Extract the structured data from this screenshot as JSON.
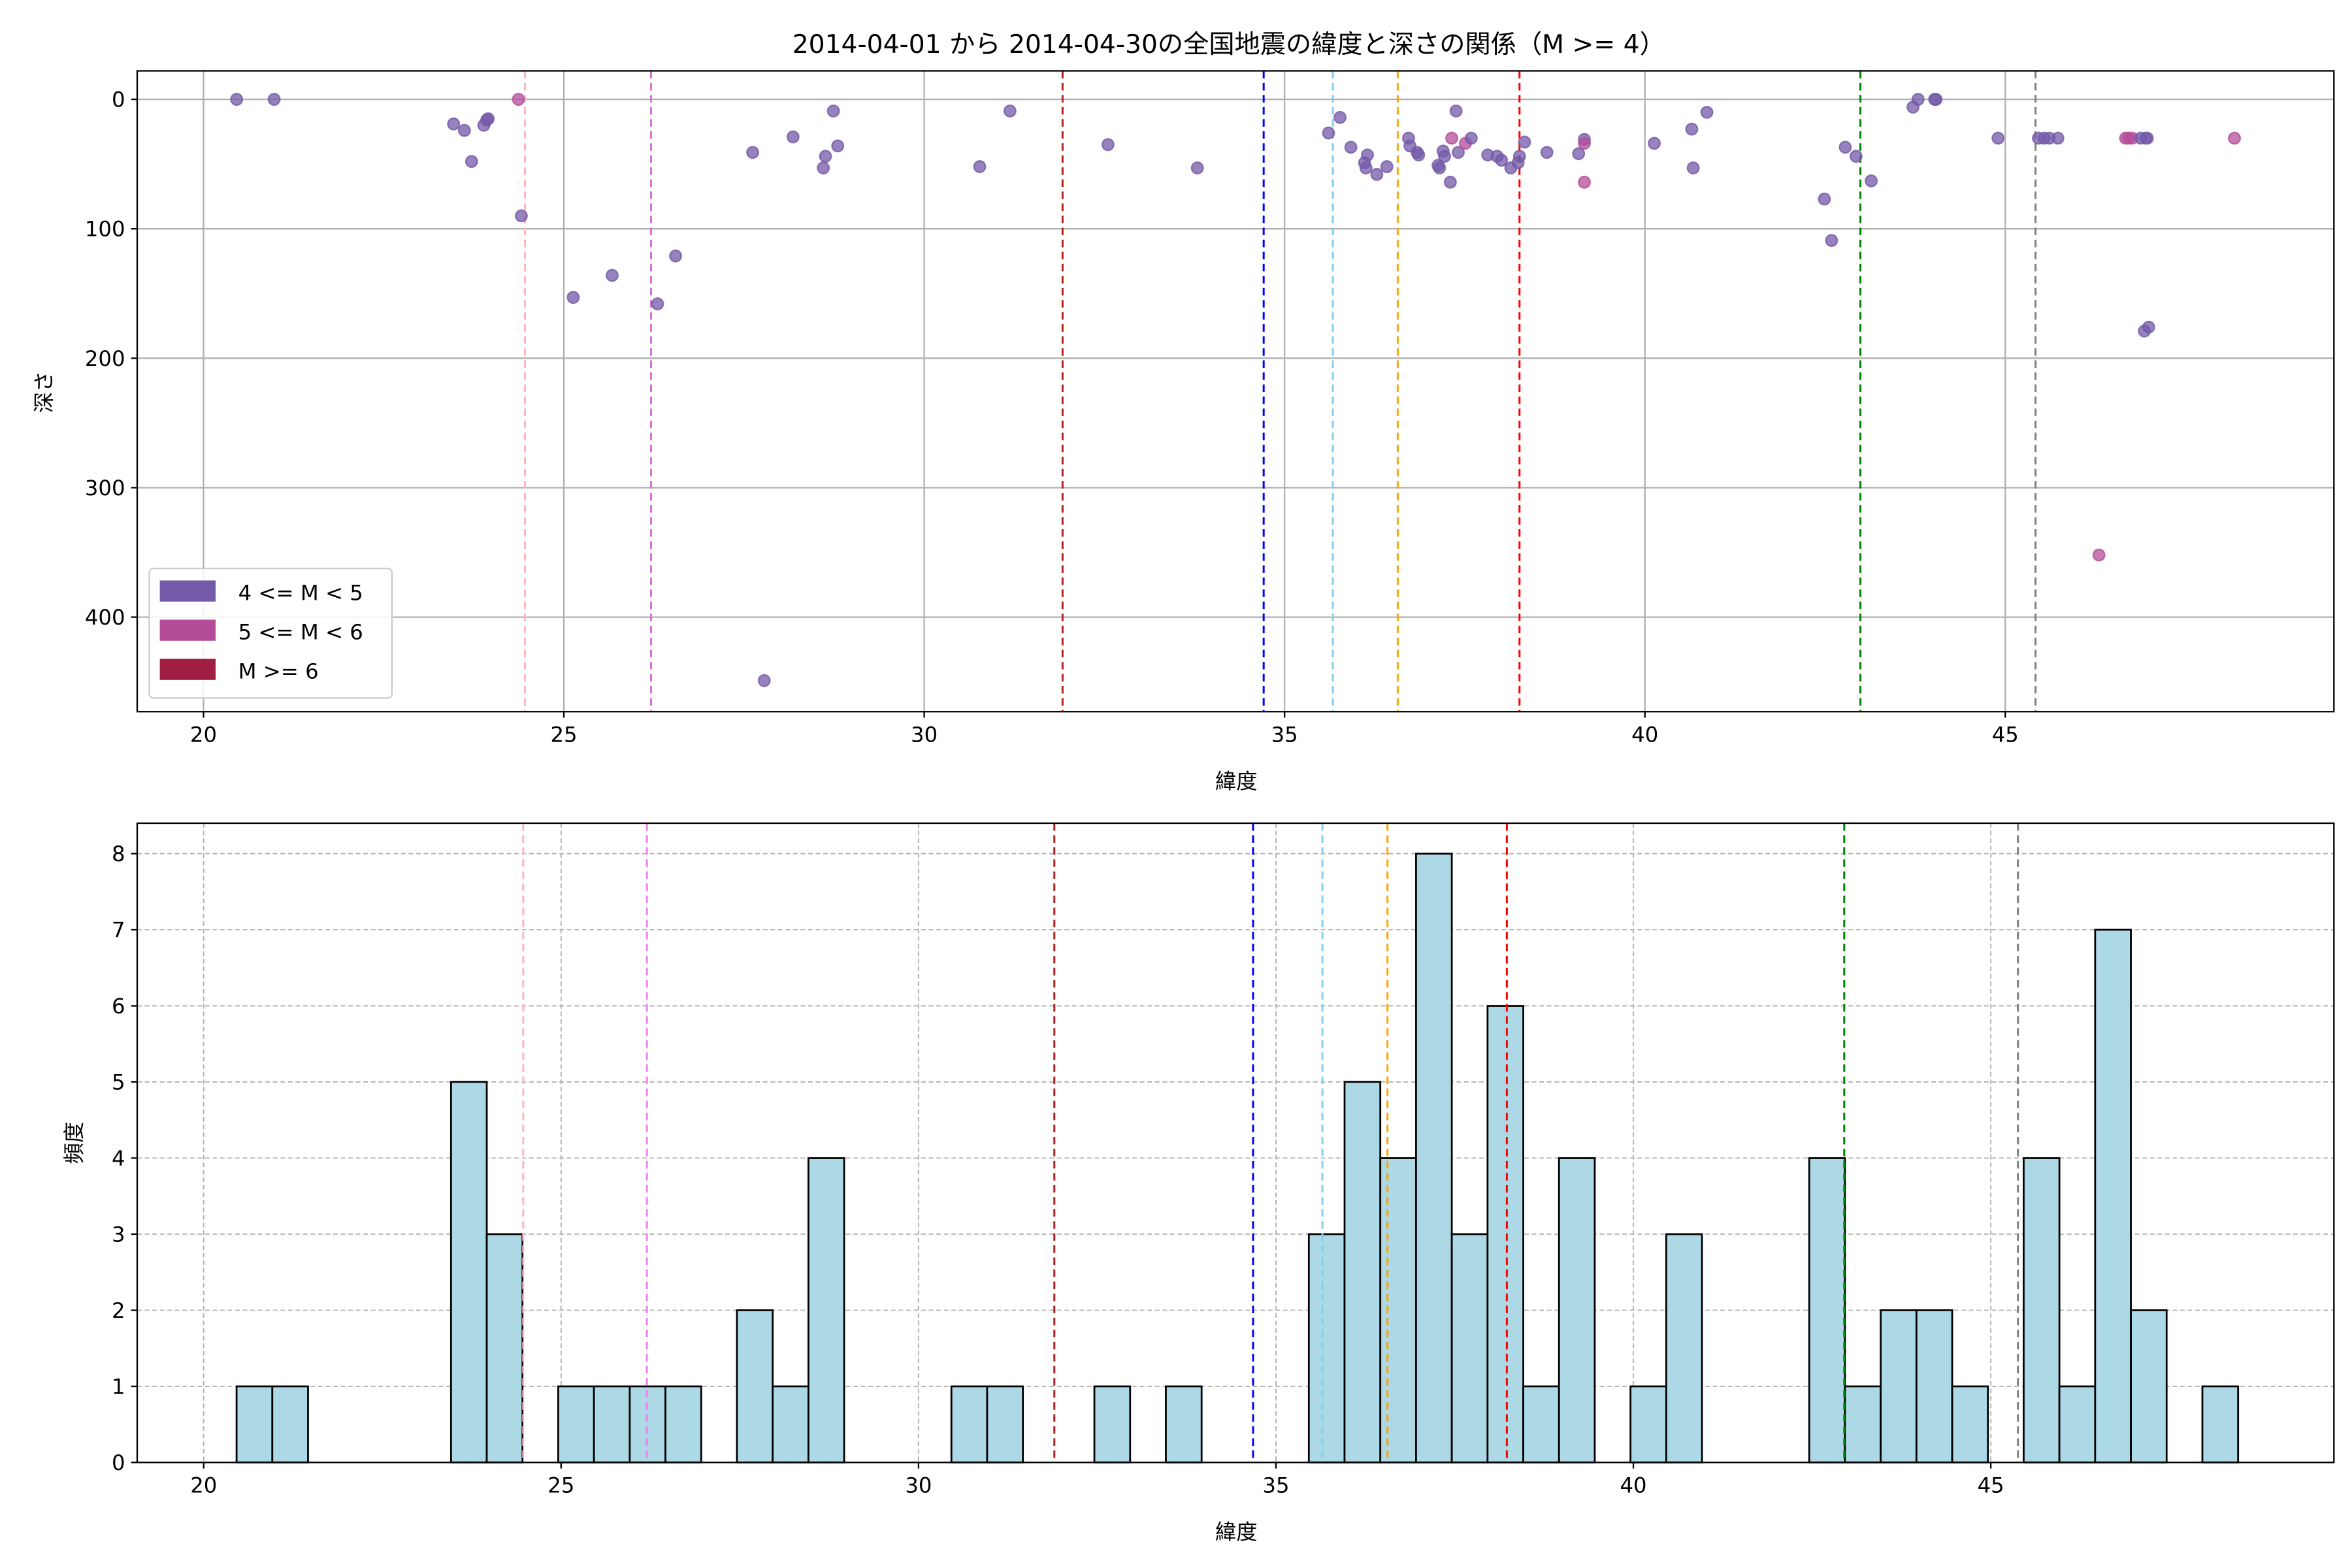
{
  "chart_data": [
    {
      "type": "scatter",
      "title": "2014-04-01 から 2014-04-30の全国地震の緯度と深さの関係（M >= 4）",
      "xlabel": "緯度",
      "ylabel": "深さ",
      "xlim": [
        19.08,
        49.56
      ],
      "ylim": [
        473,
        -22
      ],
      "y_inverted": true,
      "xticks": [
        20,
        25,
        30,
        35,
        40,
        45
      ],
      "yticks": [
        0,
        100,
        200,
        300,
        400
      ],
      "grid": true,
      "legend_position": "lower-left",
      "legend": [
        {
          "label": "4 <= M < 5",
          "color": "#735aa8"
        },
        {
          "label": "5 <= M < 6",
          "color": "#b44c9a"
        },
        {
          "label": "M >= 6",
          "color": "#a01e44"
        }
      ],
      "vlines": [
        {
          "x": 24.46,
          "color": "#ffb6c1"
        },
        {
          "x": 26.21,
          "color": "#da70d6"
        },
        {
          "x": 31.92,
          "color": "#b22222"
        },
        {
          "x": 34.71,
          "color": "#0000ff"
        },
        {
          "x": 35.67,
          "color": "#87ceeb"
        },
        {
          "x": 36.57,
          "color": "#ffa500"
        },
        {
          "x": 38.26,
          "color": "#ff0000"
        },
        {
          "x": 42.99,
          "color": "#008000"
        },
        {
          "x": 45.42,
          "color": "#808080"
        }
      ],
      "points": [
        [
          20.46,
          0,
          0
        ],
        [
          20.98,
          0,
          0
        ],
        [
          23.47,
          19,
          0
        ],
        [
          23.62,
          24,
          0
        ],
        [
          23.72,
          48,
          0
        ],
        [
          23.89,
          20,
          0
        ],
        [
          23.93,
          16,
          0
        ],
        [
          23.95,
          15,
          0
        ],
        [
          24.37,
          0,
          1
        ],
        [
          24.41,
          90,
          0
        ],
        [
          25.13,
          153,
          0
        ],
        [
          25.67,
          136,
          0
        ],
        [
          26.3,
          158,
          0
        ],
        [
          26.55,
          121,
          0
        ],
        [
          27.62,
          41,
          0
        ],
        [
          28.18,
          29,
          0
        ],
        [
          28.6,
          53,
          0
        ],
        [
          28.63,
          44,
          0
        ],
        [
          28.74,
          9,
          0
        ],
        [
          28.8,
          36,
          0
        ],
        [
          27.78,
          449,
          0
        ],
        [
          30.77,
          52,
          0
        ],
        [
          31.19,
          9,
          0
        ],
        [
          32.55,
          35,
          0
        ],
        [
          33.79,
          53,
          0
        ],
        [
          35.61,
          26,
          0
        ],
        [
          35.77,
          14,
          0
        ],
        [
          35.92,
          37,
          0
        ],
        [
          36.11,
          49,
          0
        ],
        [
          36.13,
          53,
          0
        ],
        [
          36.15,
          43,
          0
        ],
        [
          36.28,
          58,
          0
        ],
        [
          36.42,
          52,
          0
        ],
        [
          36.72,
          30,
          0
        ],
        [
          36.74,
          36,
          0
        ],
        [
          36.84,
          41,
          0
        ],
        [
          36.86,
          43,
          0
        ],
        [
          37.13,
          51,
          0
        ],
        [
          37.15,
          53,
          0
        ],
        [
          37.2,
          40,
          0
        ],
        [
          37.22,
          44,
          0
        ],
        [
          37.3,
          64,
          0
        ],
        [
          37.32,
          30,
          1
        ],
        [
          37.38,
          9,
          0
        ],
        [
          37.41,
          41,
          0
        ],
        [
          37.51,
          34,
          1
        ],
        [
          37.59,
          30,
          0
        ],
        [
          37.82,
          43,
          0
        ],
        [
          37.95,
          44,
          0
        ],
        [
          38.01,
          47,
          0
        ],
        [
          38.14,
          53,
          0
        ],
        [
          38.24,
          49,
          0
        ],
        [
          38.26,
          44,
          0
        ],
        [
          38.33,
          33,
          0
        ],
        [
          38.64,
          41,
          0
        ],
        [
          39.08,
          42,
          0
        ],
        [
          39.16,
          31,
          0
        ],
        [
          39.16,
          34,
          1
        ],
        [
          39.16,
          64,
          1
        ],
        [
          40.13,
          34,
          0
        ],
        [
          40.65,
          23,
          0
        ],
        [
          40.67,
          53,
          0
        ],
        [
          40.86,
          10,
          0
        ],
        [
          42.49,
          77,
          0
        ],
        [
          42.59,
          109,
          0
        ],
        [
          42.78,
          37,
          0
        ],
        [
          42.93,
          44,
          0
        ],
        [
          43.14,
          63,
          0
        ],
        [
          43.72,
          6,
          0
        ],
        [
          43.79,
          0,
          0
        ],
        [
          44.02,
          0,
          0
        ],
        [
          44.04,
          0,
          0
        ],
        [
          44.9,
          30,
          0
        ],
        [
          45.46,
          30,
          0
        ],
        [
          45.54,
          30,
          0
        ],
        [
          45.61,
          30,
          0
        ],
        [
          45.73,
          30,
          0
        ],
        [
          46.3,
          352,
          1
        ],
        [
          46.67,
          30,
          1
        ],
        [
          46.71,
          30,
          1
        ],
        [
          46.76,
          30,
          1
        ],
        [
          46.88,
          30,
          0
        ],
        [
          46.95,
          30,
          0
        ],
        [
          46.97,
          30,
          0
        ],
        [
          46.93,
          179,
          0
        ],
        [
          46.99,
          176,
          0
        ],
        [
          48.18,
          30,
          1
        ]
      ]
    },
    {
      "type": "bar",
      "xlabel": "緯度",
      "ylabel": "頻度",
      "xlim": [
        19.07,
        49.8
      ],
      "ylim": [
        0,
        8.4
      ],
      "xticks": [
        20,
        25,
        30,
        35,
        40,
        45
      ],
      "yticks": [
        0,
        1,
        2,
        3,
        4,
        5,
        6,
        7,
        8
      ],
      "grid": true,
      "bar_color": "#add8e6",
      "bin_width": 0.5,
      "bins": [
        [
          20.46,
          1
        ],
        [
          20.96,
          1
        ],
        [
          23.46,
          5
        ],
        [
          23.96,
          3
        ],
        [
          24.96,
          1
        ],
        [
          25.46,
          1
        ],
        [
          25.96,
          1
        ],
        [
          26.46,
          1
        ],
        [
          27.46,
          2
        ],
        [
          27.96,
          1
        ],
        [
          28.46,
          4
        ],
        [
          30.46,
          1
        ],
        [
          30.96,
          1
        ],
        [
          32.46,
          1
        ],
        [
          33.46,
          1
        ],
        [
          35.46,
          3
        ],
        [
          35.96,
          5
        ],
        [
          36.46,
          4
        ],
        [
          36.96,
          8
        ],
        [
          37.46,
          3
        ],
        [
          37.96,
          6
        ],
        [
          38.46,
          1
        ],
        [
          38.96,
          4
        ],
        [
          39.96,
          1
        ],
        [
          40.46,
          3
        ],
        [
          42.46,
          4
        ],
        [
          42.96,
          1
        ],
        [
          43.46,
          2
        ],
        [
          43.96,
          2
        ],
        [
          44.46,
          1
        ],
        [
          45.46,
          4
        ],
        [
          45.96,
          1
        ],
        [
          46.46,
          7
        ],
        [
          46.96,
          2
        ],
        [
          47.96,
          1
        ]
      ],
      "vlines": [
        {
          "x": 24.47,
          "color": "#ffb6c1"
        },
        {
          "x": 26.2,
          "color": "#ee82ee"
        },
        {
          "x": 31.9,
          "color": "#b22222"
        },
        {
          "x": 34.68,
          "color": "#0000ff"
        },
        {
          "x": 35.65,
          "color": "#87ceeb"
        },
        {
          "x": 36.56,
          "color": "#ffa500"
        },
        {
          "x": 38.23,
          "color": "#ff0000"
        },
        {
          "x": 42.95,
          "color": "#008000"
        },
        {
          "x": 45.38,
          "color": "#808080"
        }
      ]
    }
  ]
}
